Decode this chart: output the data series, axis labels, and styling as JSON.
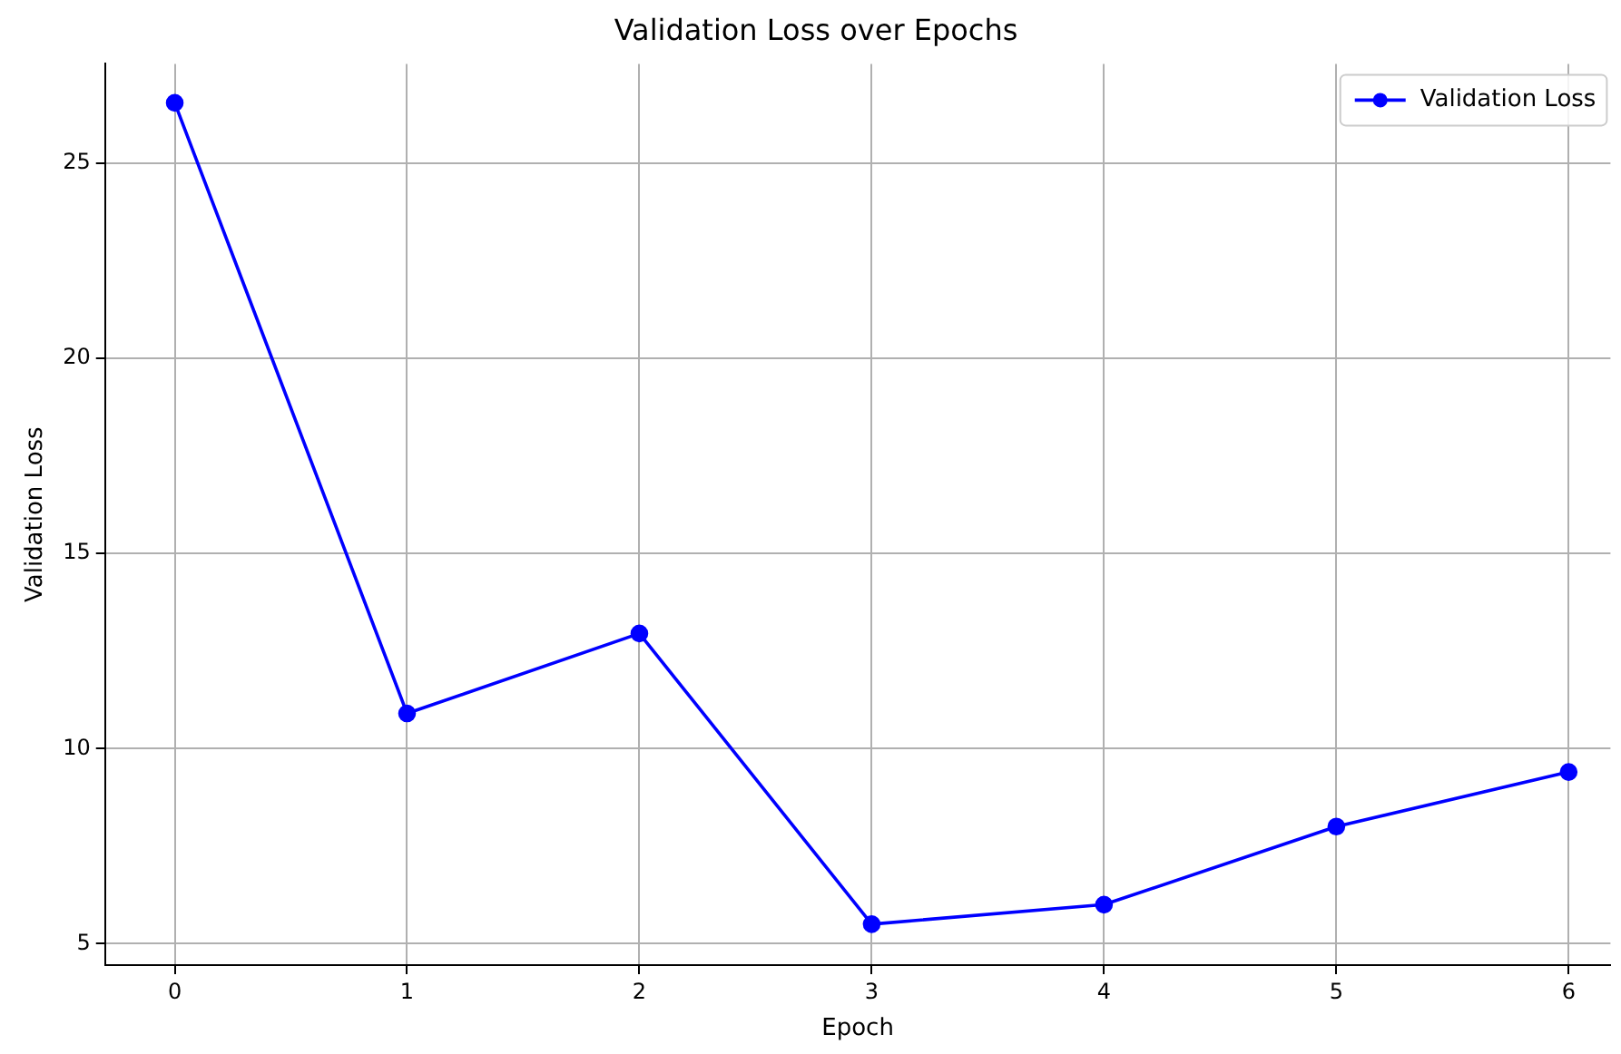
{
  "chart_data": {
    "type": "line",
    "title": "Validation Loss over Epochs",
    "xlabel": "Epoch",
    "ylabel": "Validation Loss",
    "x": [
      0,
      1,
      2,
      3,
      4,
      5,
      6
    ],
    "series": [
      {
        "name": "Validation Loss",
        "color": "#0000ff",
        "values": [
          26.55,
          10.9,
          12.95,
          5.5,
          6.0,
          8.0,
          9.4
        ]
      }
    ],
    "xlim": [
      -0.3,
      6.18
    ],
    "xticks": [
      0,
      1,
      2,
      3,
      4,
      5,
      6
    ],
    "ylim": [
      4.45,
      27.55
    ],
    "yticks": [
      5,
      10,
      15,
      20,
      25
    ],
    "grid": true,
    "legend": "top right",
    "marker": "circle",
    "line_style": "solid"
  }
}
